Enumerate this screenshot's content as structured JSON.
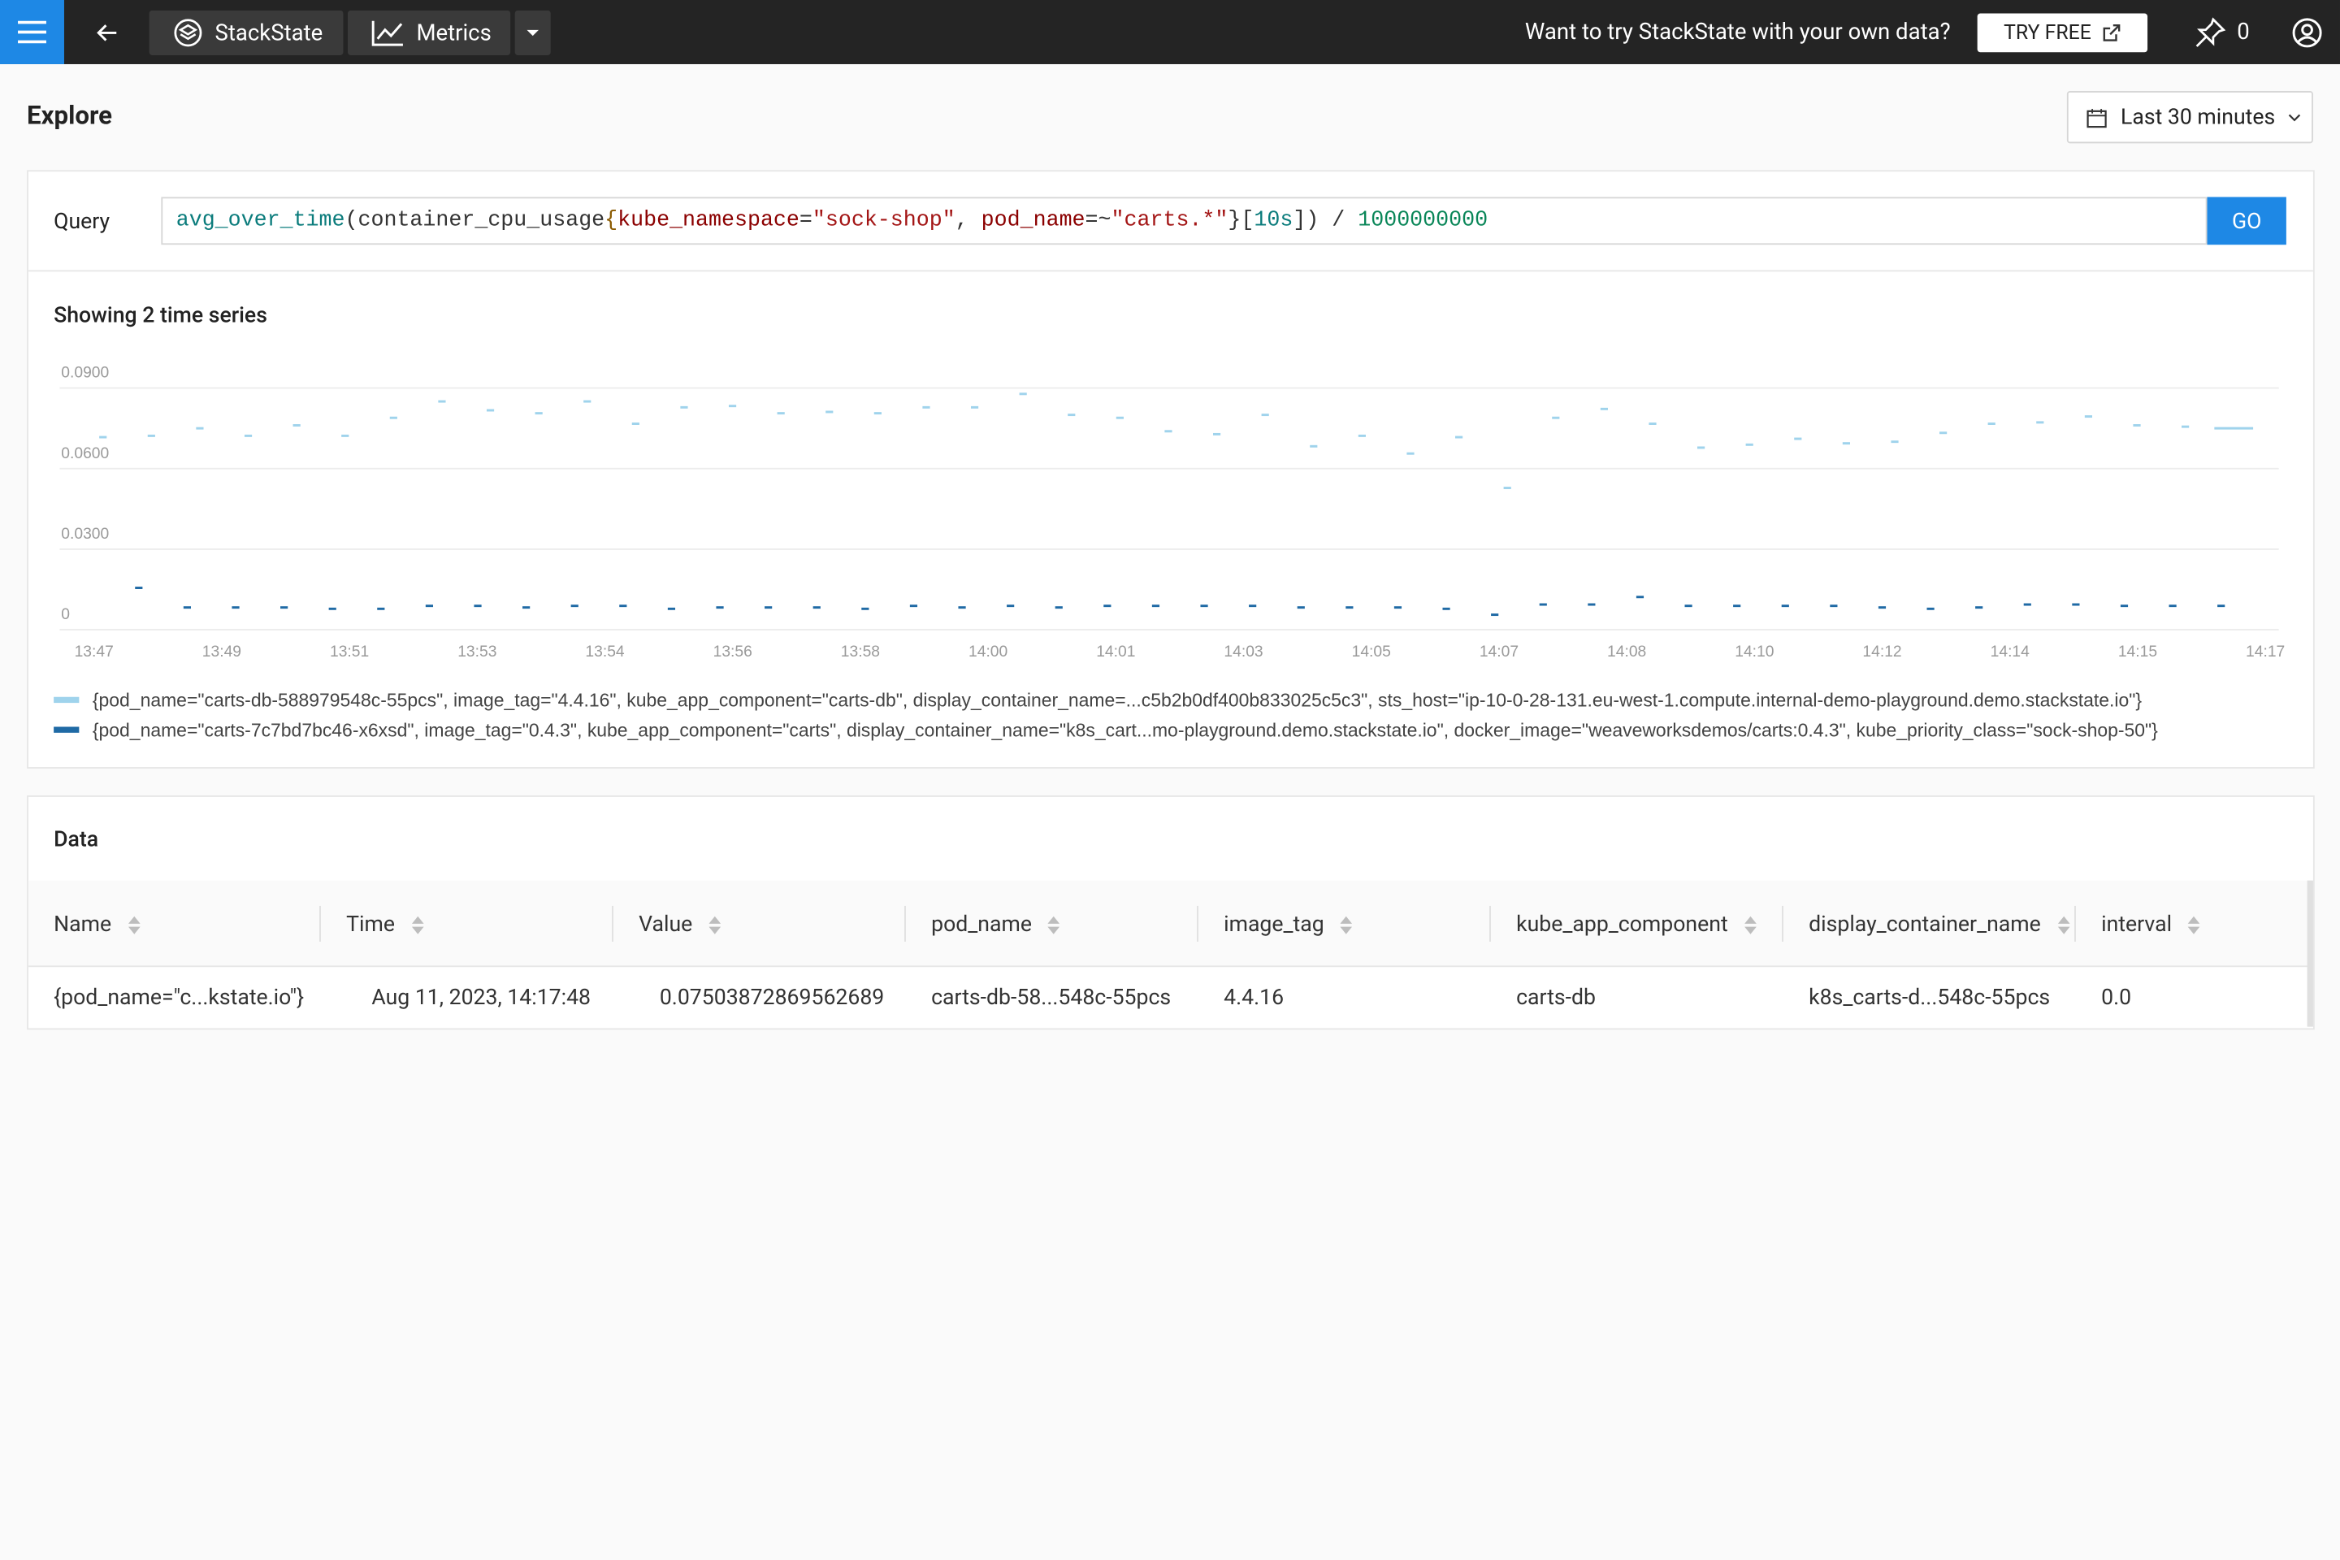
{
  "header": {
    "brand": "StackState",
    "section": "Metrics",
    "promo": "Want to try StackState with your own data?",
    "try_free": "TRY FREE",
    "pins": "0"
  },
  "page_title": "Explore",
  "time_range": "Last 30 minutes",
  "query": {
    "label": "Query",
    "button": "GO",
    "tokens": [
      {
        "text": "avg_over_time",
        "color": "#0b7c7c"
      },
      {
        "text": "(container_cpu_usage",
        "color": "#333333"
      },
      {
        "text": "{",
        "color": "#8a5a00"
      },
      {
        "text": "kube_namespace",
        "color": "#8b0000"
      },
      {
        "text": "=",
        "color": "#333333"
      },
      {
        "text": "\"sock-shop\"",
        "color": "#a31515"
      },
      {
        "text": ", ",
        "color": "#333333"
      },
      {
        "text": "pod_name",
        "color": "#8b0000"
      },
      {
        "text": "=~",
        "color": "#333333"
      },
      {
        "text": "\"carts.*\"",
        "color": "#a31515"
      },
      {
        "text": "}[",
        "color": "#333333"
      },
      {
        "text": "10s",
        "color": "#0b7c7c"
      },
      {
        "text": "]) / ",
        "color": "#333333"
      },
      {
        "text": "1000000000",
        "color": "#098658"
      }
    ]
  },
  "chart_data": {
    "type": "scatter",
    "title": "Showing 2 time series",
    "ylim": [
      0,
      0.09
    ],
    "yticks": [
      {
        "value": 0.09,
        "label": "0.0900"
      },
      {
        "value": 0.06,
        "label": "0.0600"
      },
      {
        "value": 0.03,
        "label": "0.0300"
      },
      0
    ],
    "grid": true,
    "x_tick_labels": [
      "13:47",
      "13:49",
      "13:51",
      "13:53",
      "13:54",
      "13:56",
      "13:58",
      "14:00",
      "14:01",
      "14:03",
      "14:05",
      "14:07",
      "14:08",
      "14:10",
      "14:12",
      "14:14",
      "14:15",
      "14:17"
    ],
    "series": [
      {
        "name": "{pod_name=\"carts-db-588979548c-55pcs\", image_tag=\"4.4.16\", kube_app_component=\"carts-db\", display_container_name=...c5b2b0df400b833025c5c3\", sts_host=\"ip-10-0-28-131.eu-west-1.compute.internal-demo-playground.demo.stackstate.io\"}",
        "color": "#9fd3ec",
        "values": [
          0.0717,
          0.0722,
          0.075,
          0.0722,
          0.0761,
          0.0722,
          0.0789,
          0.085,
          0.0817,
          0.0806,
          0.085,
          0.0767,
          0.0828,
          0.0833,
          0.0806,
          0.0811,
          0.0806,
          0.0828,
          0.0828,
          0.0878,
          0.08,
          0.0789,
          0.0739,
          0.0728,
          0.08,
          0.0683,
          0.0722,
          0.0656,
          0.0717,
          0.0528,
          0.0789,
          0.0822,
          0.0767,
          0.0678,
          0.0689,
          0.0711,
          0.0694,
          0.07,
          0.0733,
          0.0767,
          0.0772,
          0.0794,
          0.0761,
          0.0756,
          0.075
        ]
      },
      {
        "name": "{pod_name=\"carts-7c7bd7bc46-x6xsd\", image_tag=\"0.4.3\", kube_app_component=\"carts\", display_container_name=\"k8s_cart...mo-playground.demo.stackstate.io\", docker_image=\"weaveworksdemos/carts:0.4.3\", kube_priority_class=\"sock-shop-50\"}",
        "color": "#1f6aa5",
        "values": [
          0.0156,
          0.0083,
          0.0083,
          0.0083,
          0.0078,
          0.0078,
          0.0089,
          0.0089,
          0.0083,
          0.0089,
          0.0089,
          0.0078,
          0.0083,
          0.0083,
          0.0083,
          0.0078,
          0.0089,
          0.0083,
          0.0089,
          0.0083,
          0.0089,
          0.0089,
          0.0089,
          0.0089,
          0.0083,
          0.0083,
          0.0083,
          0.0078,
          0.0056,
          0.0094,
          0.0094,
          0.0122,
          0.0089,
          0.0089,
          0.0089,
          0.0089,
          0.0083,
          0.0078,
          0.0083,
          0.0094,
          0.0094,
          0.0089,
          0.0089,
          0.0089
        ]
      }
    ]
  },
  "table": {
    "title": "Data",
    "headers": [
      "Name",
      "Time",
      "Value",
      "pod_name",
      "image_tag",
      "kube_app_component",
      "display_container_name",
      "interval"
    ],
    "rows": [
      [
        "{pod_name=\"c...kstate.io\"}",
        "Aug 11, 2023, 14:17:48",
        "0.07503872869562689",
        "carts-db-58...548c-55pcs",
        "4.4.16",
        "carts-db",
        "k8s_carts-d...548c-55pcs",
        "0.0"
      ]
    ]
  }
}
